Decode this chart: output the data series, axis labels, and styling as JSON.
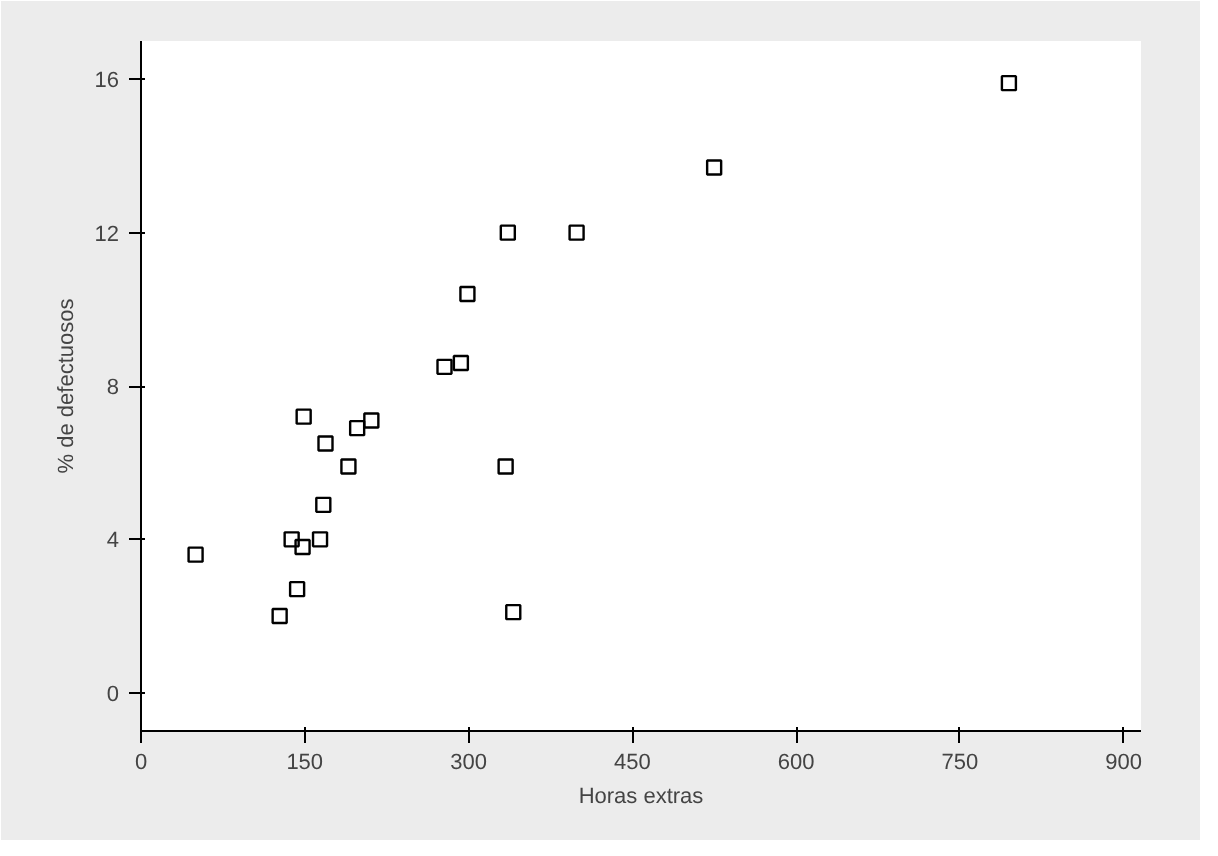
{
  "chart_data": {
    "type": "scatter",
    "xlabel": "Horas extras",
    "ylabel": "% de defectuosos",
    "x": [
      50,
      127,
      143,
      138,
      148,
      164,
      167,
      149,
      169,
      190,
      198,
      211,
      278,
      293,
      299,
      336,
      334,
      341,
      399,
      525,
      795
    ],
    "series": [
      {
        "color": "#000000",
        "values": [
          3.6,
          2.0,
          2.7,
          4.0,
          3.8,
          4.0,
          4.9,
          7.2,
          6.5,
          5.9,
          6.9,
          7.1,
          8.5,
          8.6,
          10.4,
          12.0,
          5.9,
          2.1,
          12.0,
          13.7,
          15.9
        ]
      }
    ],
    "xlim": [
      0,
      916
    ],
    "ylim": [
      -1,
      17
    ],
    "xticks": [
      0,
      150,
      300,
      450,
      600,
      750,
      900
    ],
    "yticks": [
      0,
      4,
      8,
      12,
      16
    ],
    "marker": "square"
  }
}
